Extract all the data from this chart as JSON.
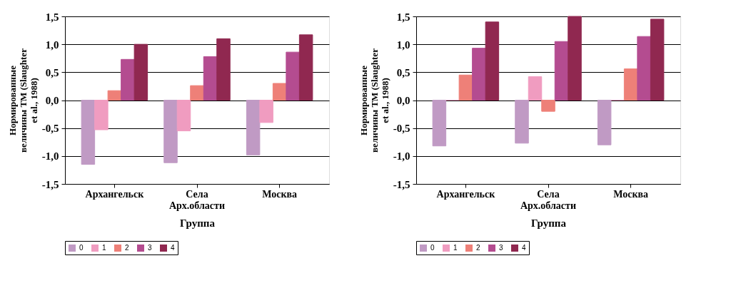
{
  "chart_data": [
    {
      "type": "bar",
      "xlabel": "Группа",
      "ylabel": "Нормированные\nвеличины ТМ (Slaughter\net al., 1988)",
      "categories": [
        "Архангельск",
        "Села\nАрх.области",
        "Москва"
      ],
      "ylim": [
        -1.5,
        1.5
      ],
      "yticks": [
        {
          "value": 1.5,
          "label": "1,5"
        },
        {
          "value": 1.0,
          "label": "1,0"
        },
        {
          "value": 0.5,
          "label": "0,5"
        },
        {
          "value": 0.0,
          "label": "0,0"
        },
        {
          "value": -0.5,
          "label": "-0,5"
        },
        {
          "value": -1.0,
          "label": "-1,0"
        },
        {
          "value": -1.5,
          "label": "-1,5"
        }
      ],
      "grid": "y",
      "legend": "bottom",
      "series": [
        {
          "name": "0",
          "color": "#c09ac4",
          "values": [
            -1.15,
            -1.12,
            -0.98
          ]
        },
        {
          "name": "1",
          "color": "#f09cc0",
          "values": [
            -0.53,
            -0.55,
            -0.4
          ]
        },
        {
          "name": "2",
          "color": "#ee8078",
          "values": [
            0.17,
            0.26,
            0.3
          ]
        },
        {
          "name": "3",
          "color": "#b44c90",
          "values": [
            0.73,
            0.78,
            0.86
          ]
        },
        {
          "name": "4",
          "color": "#902850",
          "values": [
            1.0,
            1.1,
            1.17
          ]
        }
      ]
    },
    {
      "type": "bar",
      "xlabel": "Группа",
      "ylabel": "Нормированные\nвеличины ТМ (Slaughter\net al., 1988)",
      "categories": [
        "Архангельск",
        "Села\nАрх.области",
        "Москва"
      ],
      "ylim": [
        -1.5,
        1.5
      ],
      "yticks": [
        {
          "value": 1.5,
          "label": "1,5"
        },
        {
          "value": 1.0,
          "label": "1,0"
        },
        {
          "value": 0.5,
          "label": "0,5"
        },
        {
          "value": 0.0,
          "label": "0,0"
        },
        {
          "value": -0.5,
          "label": "-0,5"
        },
        {
          "value": -1.0,
          "label": "-1,0"
        },
        {
          "value": -1.5,
          "label": "-1,5"
        }
      ],
      "grid": "y",
      "legend": "bottom",
      "series": [
        {
          "name": "0",
          "color": "#c09ac4",
          "values": [
            -0.82,
            -0.77,
            -0.8
          ]
        },
        {
          "name": "1",
          "color": "#f09cc0",
          "values": [
            0.0,
            0.42,
            0.0
          ]
        },
        {
          "name": "2",
          "color": "#ee8078",
          "values": [
            0.45,
            -0.2,
            0.56
          ]
        },
        {
          "name": "3",
          "color": "#b44c90",
          "values": [
            0.93,
            1.05,
            1.14
          ]
        },
        {
          "name": "4",
          "color": "#902850",
          "values": [
            1.4,
            1.5,
            1.45
          ]
        }
      ]
    }
  ]
}
